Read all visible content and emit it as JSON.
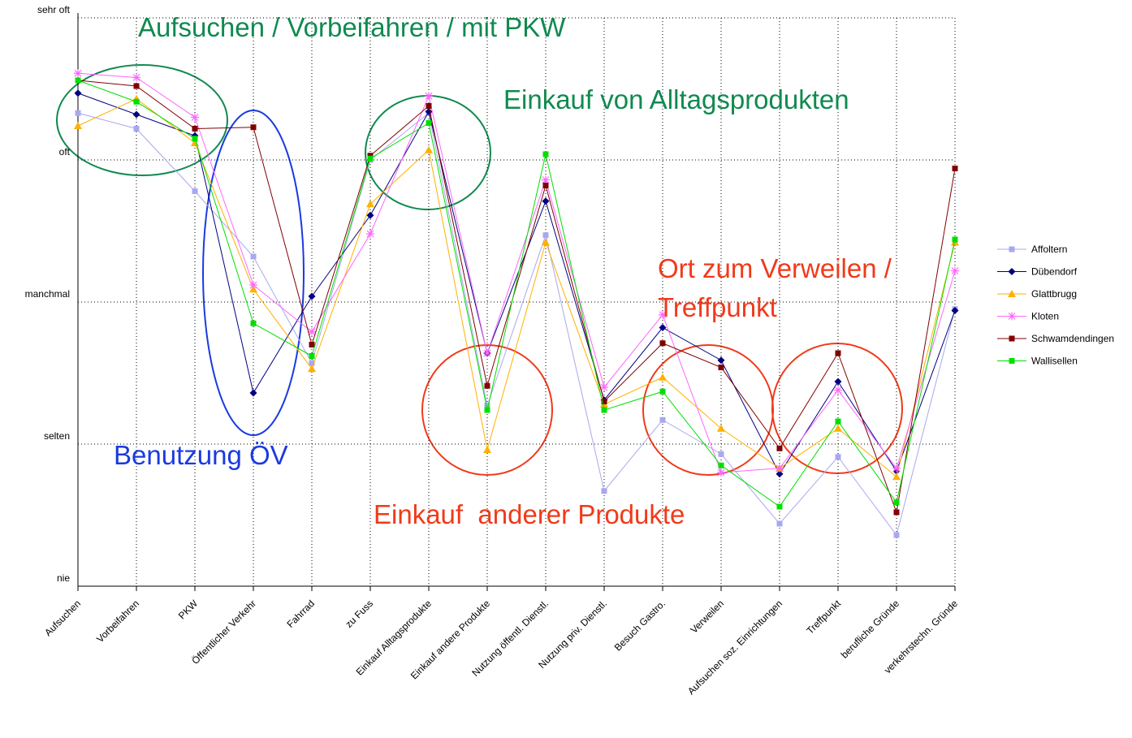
{
  "chart_data": {
    "type": "line",
    "categories": [
      "Aufsuchen",
      "Vorbeifahren",
      "PKW",
      "Öffentlicher Verkehr",
      "Fahrrad",
      "zu Fuss",
      "Einkauf Alltagsprodukte",
      "Einkauf andere Produkte",
      "Nutzung öffentl. Dienstl.",
      "Nutzung priv. Dienstl.",
      "Besuch Gastro.",
      "Verweilen",
      "Aufsuchen soz. Einrichtungen",
      "Treffpunkt",
      "berufliche Gründe",
      "verkehrstechn. Gründe"
    ],
    "series": [
      {
        "name": "Affoltern",
        "color": "#a8a8f0",
        "marker": "square",
        "values": [
          4.33,
          4.22,
          3.78,
          3.32,
          2.57,
          4.0,
          4.33,
          2.27,
          3.47,
          1.67,
          2.17,
          1.93,
          1.44,
          1.91,
          1.36,
          2.95
        ]
      },
      {
        "name": "Dübendorf",
        "color": "#000080",
        "marker": "diamond",
        "values": [
          4.47,
          4.32,
          4.17,
          2.36,
          3.04,
          3.61,
          4.34,
          2.64,
          3.71,
          2.31,
          2.82,
          2.59,
          1.79,
          2.44,
          1.81,
          2.94
        ]
      },
      {
        "name": "Glattbrugg",
        "color": "#ffb000",
        "marker": "triangle",
        "values": [
          4.24,
          4.43,
          4.12,
          3.09,
          2.53,
          3.69,
          4.07,
          1.96,
          3.42,
          2.28,
          2.47,
          2.11,
          1.83,
          2.11,
          1.77,
          3.42
        ]
      },
      {
        "name": "Kloten",
        "color": "#ff66ff",
        "marker": "star",
        "values": [
          4.61,
          4.58,
          4.3,
          3.12,
          2.79,
          3.48,
          4.45,
          2.64,
          3.86,
          2.4,
          2.91,
          1.8,
          1.83,
          2.38,
          1.83,
          3.22
        ]
      },
      {
        "name": "Schwamdendingen",
        "color": "#800000",
        "marker": "square",
        "values": [
          4.56,
          4.52,
          4.22,
          4.23,
          2.7,
          4.03,
          4.38,
          2.41,
          3.82,
          2.3,
          2.71,
          2.54,
          1.97,
          2.64,
          1.52,
          3.94
        ]
      },
      {
        "name": "Wallisellen",
        "color": "#00e000",
        "marker": "square",
        "values": [
          4.56,
          4.41,
          4.15,
          2.85,
          2.62,
          4.01,
          4.26,
          2.24,
          4.04,
          2.24,
          2.37,
          1.85,
          1.56,
          2.16,
          1.59,
          3.44
        ]
      }
    ],
    "ylim": [
      1,
      5
    ],
    "yticks": [
      {
        "value": 1,
        "label": "nie"
      },
      {
        "value": 2,
        "label": "selten"
      },
      {
        "value": 3,
        "label": "manchmal"
      },
      {
        "value": 4,
        "label": "oft"
      },
      {
        "value": 5,
        "label": "sehr oft"
      }
    ],
    "grid": true,
    "legend": "right",
    "annotations": [
      {
        "text": "Aufsuchen / Vorbeifahren / mit PKW",
        "color": "#108a50"
      },
      {
        "text": "Einkauf von Alltagsprodukten",
        "color": "#108a50"
      },
      {
        "text": "Benutzung ÖV",
        "color": "#1a3ae0"
      },
      {
        "text": "Ort zum Verweilen /",
        "color": "#f03a1a"
      },
      {
        "text": "Treffpunkt",
        "color": "#f03a1a"
      },
      {
        "text": "Einkauf  anderer Produkte",
        "color": "#f03a1a"
      }
    ]
  }
}
